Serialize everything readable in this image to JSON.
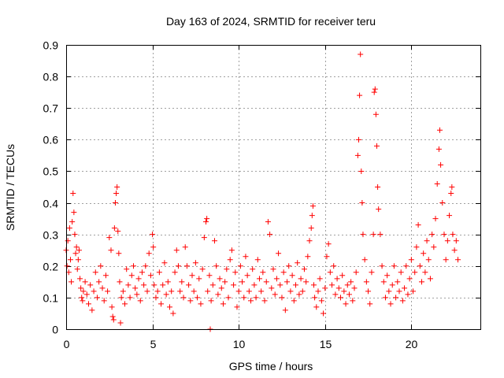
{
  "chart_data": {
    "type": "scatter",
    "title": "Day 163 of 2024, SRMTID for receiver teru",
    "xlabel": "GPS time / hours",
    "ylabel": "SRMTID / TECUs",
    "xlim": [
      0,
      24
    ],
    "ylim": [
      0,
      0.9
    ],
    "x_ticks": [
      0,
      5,
      10,
      15,
      20
    ],
    "x_tick_labels": [
      "0",
      "5",
      "10",
      "15",
      "20"
    ],
    "y_ticks": [
      0,
      0.1,
      0.2,
      0.3,
      0.4,
      0.5,
      0.6,
      0.7,
      0.8,
      0.9
    ],
    "y_tick_labels": [
      "0",
      "0.1",
      "0.2",
      "0.3",
      "0.4",
      "0.5",
      "0.6",
      "0.7",
      "0.8",
      "0.9"
    ],
    "grid": true,
    "marker": "+",
    "color": "#ff0000",
    "series": [
      {
        "name": "SRMTID",
        "points": [
          [
            0.0,
            0.25
          ],
          [
            0.05,
            0.2
          ],
          [
            0.1,
            0.28
          ],
          [
            0.15,
            0.18
          ],
          [
            0.2,
            0.32
          ],
          [
            0.25,
            0.22
          ],
          [
            0.3,
            0.15
          ],
          [
            0.35,
            0.34
          ],
          [
            0.4,
            0.43
          ],
          [
            0.45,
            0.37
          ],
          [
            0.5,
            0.3
          ],
          [
            0.55,
            0.24
          ],
          [
            0.6,
            0.26
          ],
          [
            0.65,
            0.19
          ],
          [
            0.7,
            0.22
          ],
          [
            0.75,
            0.25
          ],
          [
            0.8,
            0.16
          ],
          [
            0.85,
            0.13
          ],
          [
            0.9,
            0.1
          ],
          [
            0.95,
            0.09
          ],
          [
            1.0,
            0.12
          ],
          [
            1.1,
            0.15
          ],
          [
            1.2,
            0.11
          ],
          [
            1.3,
            0.08
          ],
          [
            1.4,
            0.14
          ],
          [
            1.5,
            0.06
          ],
          [
            1.6,
            0.12
          ],
          [
            1.7,
            0.18
          ],
          [
            1.8,
            0.1
          ],
          [
            1.9,
            0.15
          ],
          [
            2.0,
            0.2
          ],
          [
            2.1,
            0.13
          ],
          [
            2.2,
            0.09
          ],
          [
            2.3,
            0.17
          ],
          [
            2.4,
            0.12
          ],
          [
            2.5,
            0.29
          ],
          [
            2.6,
            0.25
          ],
          [
            2.65,
            0.07
          ],
          [
            2.7,
            0.04
          ],
          [
            2.75,
            0.03
          ],
          [
            2.8,
            0.32
          ],
          [
            2.85,
            0.4
          ],
          [
            2.9,
            0.43
          ],
          [
            2.95,
            0.45
          ],
          [
            3.0,
            0.31
          ],
          [
            3.05,
            0.24
          ],
          [
            3.1,
            0.15
          ],
          [
            3.15,
            0.02
          ],
          [
            3.2,
            0.1
          ],
          [
            3.3,
            0.12
          ],
          [
            3.4,
            0.08
          ],
          [
            3.5,
            0.19
          ],
          [
            3.6,
            0.14
          ],
          [
            3.7,
            0.1
          ],
          [
            3.8,
            0.17
          ],
          [
            3.9,
            0.2
          ],
          [
            4.0,
            0.13
          ],
          [
            4.1,
            0.11
          ],
          [
            4.2,
            0.16
          ],
          [
            4.3,
            0.09
          ],
          [
            4.4,
            0.18
          ],
          [
            4.5,
            0.14
          ],
          [
            4.6,
            0.2
          ],
          [
            4.7,
            0.12
          ],
          [
            4.8,
            0.24
          ],
          [
            4.9,
            0.17
          ],
          [
            5.0,
            0.3
          ],
          [
            5.05,
            0.26
          ],
          [
            5.1,
            0.14
          ],
          [
            5.2,
            0.1
          ],
          [
            5.3,
            0.12
          ],
          [
            5.4,
            0.18
          ],
          [
            5.5,
            0.08
          ],
          [
            5.6,
            0.14
          ],
          [
            5.7,
            0.21
          ],
          [
            5.8,
            0.11
          ],
          [
            5.9,
            0.15
          ],
          [
            6.0,
            0.07
          ],
          [
            6.1,
            0.12
          ],
          [
            6.2,
            0.05
          ],
          [
            6.3,
            0.18
          ],
          [
            6.4,
            0.25
          ],
          [
            6.5,
            0.2
          ],
          [
            6.6,
            0.12
          ],
          [
            6.7,
            0.15
          ],
          [
            6.8,
            0.1
          ],
          [
            6.9,
            0.26
          ],
          [
            7.0,
            0.2
          ],
          [
            7.1,
            0.14
          ],
          [
            7.2,
            0.09
          ],
          [
            7.3,
            0.17
          ],
          [
            7.4,
            0.12
          ],
          [
            7.5,
            0.21
          ],
          [
            7.6,
            0.1
          ],
          [
            7.7,
            0.16
          ],
          [
            7.8,
            0.08
          ],
          [
            7.9,
            0.19
          ],
          [
            8.0,
            0.29
          ],
          [
            8.1,
            0.34
          ],
          [
            8.15,
            0.35
          ],
          [
            8.2,
            0.12
          ],
          [
            8.3,
            0.17
          ],
          [
            8.35,
            0.0
          ],
          [
            8.4,
            0.09
          ],
          [
            8.5,
            0.14
          ],
          [
            8.6,
            0.28
          ],
          [
            8.7,
            0.2
          ],
          [
            8.8,
            0.11
          ],
          [
            8.9,
            0.16
          ],
          [
            9.0,
            0.13
          ],
          [
            9.1,
            0.08
          ],
          [
            9.2,
            0.15
          ],
          [
            9.3,
            0.19
          ],
          [
            9.4,
            0.1
          ],
          [
            9.5,
            0.22
          ],
          [
            9.6,
            0.25
          ],
          [
            9.7,
            0.14
          ],
          [
            9.8,
            0.18
          ],
          [
            9.9,
            0.07
          ],
          [
            10.0,
            0.12
          ],
          [
            10.1,
            0.2
          ],
          [
            10.2,
            0.15
          ],
          [
            10.3,
            0.1
          ],
          [
            10.4,
            0.23
          ],
          [
            10.5,
            0.17
          ],
          [
            10.6,
            0.12
          ],
          [
            10.7,
            0.09
          ],
          [
            10.8,
            0.19
          ],
          [
            10.9,
            0.14
          ],
          [
            11.0,
            0.1
          ],
          [
            11.1,
            0.22
          ],
          [
            11.2,
            0.16
          ],
          [
            11.3,
            0.12
          ],
          [
            11.4,
            0.18
          ],
          [
            11.5,
            0.09
          ],
          [
            11.6,
            0.15
          ],
          [
            11.7,
            0.34
          ],
          [
            11.8,
            0.3
          ],
          [
            11.9,
            0.13
          ],
          [
            12.0,
            0.19
          ],
          [
            12.1,
            0.11
          ],
          [
            12.2,
            0.16
          ],
          [
            12.3,
            0.24
          ],
          [
            12.4,
            0.14
          ],
          [
            12.5,
            0.1
          ],
          [
            12.6,
            0.18
          ],
          [
            12.7,
            0.06
          ],
          [
            12.8,
            0.15
          ],
          [
            12.9,
            0.2
          ],
          [
            13.0,
            0.12
          ],
          [
            13.1,
            0.17
          ],
          [
            13.2,
            0.09
          ],
          [
            13.3,
            0.14
          ],
          [
            13.4,
            0.21
          ],
          [
            13.5,
            0.11
          ],
          [
            13.6,
            0.16
          ],
          [
            13.7,
            0.12
          ],
          [
            13.8,
            0.19
          ],
          [
            13.9,
            0.15
          ],
          [
            14.0,
            0.23
          ],
          [
            14.1,
            0.28
          ],
          [
            14.2,
            0.32
          ],
          [
            14.25,
            0.36
          ],
          [
            14.3,
            0.39
          ],
          [
            14.35,
            0.14
          ],
          [
            14.4,
            0.1
          ],
          [
            14.5,
            0.07
          ],
          [
            14.6,
            0.12
          ],
          [
            14.7,
            0.16
          ],
          [
            14.8,
            0.09
          ],
          [
            14.9,
            0.05
          ],
          [
            15.0,
            0.13
          ],
          [
            15.1,
            0.23
          ],
          [
            15.2,
            0.27
          ],
          [
            15.3,
            0.18
          ],
          [
            15.4,
            0.14
          ],
          [
            15.5,
            0.2
          ],
          [
            15.6,
            0.11
          ],
          [
            15.7,
            0.16
          ],
          [
            15.8,
            0.13
          ],
          [
            15.9,
            0.1
          ],
          [
            16.0,
            0.17
          ],
          [
            16.1,
            0.12
          ],
          [
            16.2,
            0.08
          ],
          [
            16.3,
            0.14
          ],
          [
            16.4,
            0.11
          ],
          [
            16.5,
            0.15
          ],
          [
            16.6,
            0.09
          ],
          [
            16.7,
            0.13
          ],
          [
            16.8,
            0.18
          ],
          [
            16.9,
            0.55
          ],
          [
            16.95,
            0.6
          ],
          [
            17.0,
            0.74
          ],
          [
            17.05,
            0.87
          ],
          [
            17.1,
            0.5
          ],
          [
            17.15,
            0.4
          ],
          [
            17.2,
            0.3
          ],
          [
            17.3,
            0.22
          ],
          [
            17.4,
            0.15
          ],
          [
            17.5,
            0.12
          ],
          [
            17.6,
            0.08
          ],
          [
            17.7,
            0.18
          ],
          [
            17.8,
            0.3
          ],
          [
            17.85,
            0.75
          ],
          [
            17.9,
            0.76
          ],
          [
            17.95,
            0.68
          ],
          [
            18.0,
            0.58
          ],
          [
            18.05,
            0.45
          ],
          [
            18.1,
            0.38
          ],
          [
            18.2,
            0.3
          ],
          [
            18.3,
            0.2
          ],
          [
            18.4,
            0.15
          ],
          [
            18.5,
            0.1
          ],
          [
            18.6,
            0.17
          ],
          [
            18.7,
            0.12
          ],
          [
            18.8,
            0.08
          ],
          [
            18.9,
            0.14
          ],
          [
            19.0,
            0.2
          ],
          [
            19.1,
            0.1
          ],
          [
            19.2,
            0.15
          ],
          [
            19.3,
            0.12
          ],
          [
            19.4,
            0.18
          ],
          [
            19.5,
            0.09
          ],
          [
            19.6,
            0.13
          ],
          [
            19.7,
            0.2
          ],
          [
            19.8,
            0.11
          ],
          [
            19.9,
            0.16
          ],
          [
            20.0,
            0.22
          ],
          [
            20.1,
            0.12
          ],
          [
            20.2,
            0.18
          ],
          [
            20.3,
            0.26
          ],
          [
            20.4,
            0.33
          ],
          [
            20.5,
            0.2
          ],
          [
            20.6,
            0.15
          ],
          [
            20.7,
            0.24
          ],
          [
            20.8,
            0.18
          ],
          [
            20.9,
            0.28
          ],
          [
            21.0,
            0.22
          ],
          [
            21.1,
            0.16
          ],
          [
            21.2,
            0.3
          ],
          [
            21.3,
            0.26
          ],
          [
            21.4,
            0.35
          ],
          [
            21.5,
            0.46
          ],
          [
            21.6,
            0.57
          ],
          [
            21.65,
            0.63
          ],
          [
            21.7,
            0.52
          ],
          [
            21.8,
            0.4
          ],
          [
            21.9,
            0.3
          ],
          [
            22.0,
            0.22
          ],
          [
            22.1,
            0.28
          ],
          [
            22.2,
            0.36
          ],
          [
            22.3,
            0.43
          ],
          [
            22.35,
            0.45
          ],
          [
            22.4,
            0.3
          ],
          [
            22.5,
            0.25
          ],
          [
            22.6,
            0.28
          ],
          [
            22.7,
            0.22
          ]
        ]
      }
    ]
  }
}
